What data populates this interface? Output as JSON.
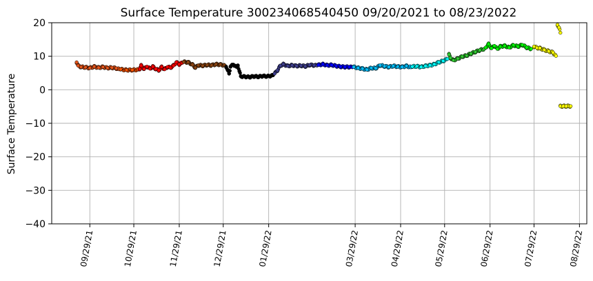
{
  "chart_data": {
    "type": "scatter",
    "title": "Surface Temperature 300234068540450  09/20/2021 to 08/23/2022",
    "xlabel": "",
    "ylabel": "Surface Temperature",
    "xlim": [
      "2021-09-03",
      "2022-09-03"
    ],
    "ylim": [
      -40,
      20
    ],
    "grid": true,
    "yticks": [
      -40,
      -30,
      -20,
      -10,
      0,
      10,
      20
    ],
    "yticklabels": [
      "−40",
      "−30",
      "−20",
      "−10",
      "0",
      "10",
      "20"
    ],
    "xticks": [
      "2021-09-29",
      "2021-10-29",
      "2021-11-29",
      "2021-12-29",
      "2022-01-29",
      "2022-03-29",
      "2022-04-29",
      "2022-05-29",
      "2022-06-29",
      "2022-07-29",
      "2022-08-29"
    ],
    "xticklabels": [
      "09/29/21",
      "10/29/21",
      "11/29/21",
      "12/29/21",
      "01/29/22",
      "03/29/22",
      "04/29/22",
      "05/29/22",
      "06/29/22",
      "07/29/22",
      "08/29/22"
    ],
    "series": [
      {
        "color": "#e8561a",
        "points": [
          [
            "2021-09-20",
            8.2
          ],
          [
            "2021-09-21",
            7.2
          ],
          [
            "2021-09-23",
            6.8
          ],
          [
            "2021-09-26",
            6.7
          ],
          [
            "2021-09-29",
            6.5
          ],
          [
            "2021-10-02",
            6.9
          ],
          [
            "2021-10-05",
            6.6
          ],
          [
            "2021-10-08",
            6.8
          ],
          [
            "2021-10-11",
            6.5
          ],
          [
            "2021-10-14",
            6.6
          ],
          [
            "2021-10-17",
            6.4
          ],
          [
            "2021-10-19",
            6.1
          ]
        ]
      },
      {
        "color": "#ff5500",
        "points": [
          [
            "2021-10-20",
            6.1
          ],
          [
            "2021-10-24",
            5.9
          ],
          [
            "2021-10-28",
            5.9
          ],
          [
            "2021-11-01",
            6.0
          ]
        ]
      },
      {
        "color": "#ff0000",
        "points": [
          [
            "2021-11-02",
            6.2
          ],
          [
            "2021-11-03",
            7.2
          ],
          [
            "2021-11-05",
            6.2
          ],
          [
            "2021-11-07",
            6.9
          ],
          [
            "2021-11-09",
            6.3
          ],
          [
            "2021-11-11",
            6.9
          ],
          [
            "2021-11-13",
            6.2
          ],
          [
            "2021-11-15",
            5.8
          ],
          [
            "2021-11-17",
            6.8
          ],
          [
            "2021-11-19",
            6.1
          ],
          [
            "2021-11-21",
            6.8
          ],
          [
            "2021-11-23",
            6.6
          ],
          [
            "2021-11-25",
            7.2
          ],
          [
            "2021-11-27",
            8.2
          ],
          [
            "2021-11-29",
            7.6
          ],
          [
            "2021-12-01",
            8.0
          ]
        ]
      },
      {
        "color": "#8b4513",
        "points": [
          [
            "2021-12-02",
            8.3
          ],
          [
            "2021-12-05",
            8.2
          ],
          [
            "2021-12-08",
            7.5
          ],
          [
            "2021-12-10",
            6.6
          ],
          [
            "2021-12-12",
            7.3
          ],
          [
            "2021-12-15",
            7.2
          ],
          [
            "2021-12-18",
            7.4
          ],
          [
            "2021-12-21",
            7.3
          ],
          [
            "2021-12-24",
            7.6
          ],
          [
            "2021-12-27",
            7.5
          ],
          [
            "2021-12-30",
            7.3
          ]
        ]
      },
      {
        "color": "#000000",
        "points": [
          [
            "2021-12-31",
            6.9
          ],
          [
            "2022-01-01",
            5.8
          ],
          [
            "2022-01-02",
            4.8
          ],
          [
            "2022-01-03",
            7.0
          ],
          [
            "2022-01-05",
            7.5
          ],
          [
            "2022-01-07",
            6.8
          ],
          [
            "2022-01-08",
            7.3
          ],
          [
            "2022-01-09",
            5.5
          ],
          [
            "2022-01-10",
            4.0
          ],
          [
            "2022-01-13",
            3.9
          ],
          [
            "2022-01-16",
            3.8
          ],
          [
            "2022-01-19",
            4.0
          ],
          [
            "2022-01-22",
            3.9
          ],
          [
            "2022-01-25",
            4.1
          ],
          [
            "2022-01-28",
            4.0
          ],
          [
            "2022-01-31",
            4.2
          ],
          [
            "2022-02-01",
            4.3
          ]
        ]
      },
      {
        "color": "#3f3f8f",
        "points": [
          [
            "2022-02-02",
            4.8
          ],
          [
            "2022-02-04",
            5.8
          ],
          [
            "2022-02-06",
            7.2
          ],
          [
            "2022-02-08",
            7.6
          ],
          [
            "2022-02-11",
            7.1
          ],
          [
            "2022-02-14",
            7.3
          ],
          [
            "2022-02-17",
            7.1
          ],
          [
            "2022-02-20",
            7.2
          ],
          [
            "2022-02-23",
            7.0
          ],
          [
            "2022-02-26",
            7.4
          ],
          [
            "2022-03-01",
            7.3
          ],
          [
            "2022-03-03",
            7.2
          ]
        ]
      },
      {
        "color": "#0000ff",
        "points": [
          [
            "2022-03-04",
            7.4
          ],
          [
            "2022-03-07",
            7.6
          ],
          [
            "2022-03-10",
            7.3
          ],
          [
            "2022-03-13",
            7.4
          ],
          [
            "2022-03-16",
            7.1
          ],
          [
            "2022-03-19",
            6.9
          ],
          [
            "2022-03-22",
            6.8
          ],
          [
            "2022-03-25",
            6.8
          ],
          [
            "2022-03-27",
            6.7
          ]
        ]
      },
      {
        "color": "#00bfff",
        "points": [
          [
            "2022-03-28",
            6.8
          ],
          [
            "2022-03-31",
            6.5
          ],
          [
            "2022-04-03",
            6.3
          ],
          [
            "2022-04-06",
            6.0
          ],
          [
            "2022-04-09",
            6.5
          ],
          [
            "2022-04-12",
            6.4
          ],
          [
            "2022-04-15",
            7.3
          ],
          [
            "2022-04-18",
            7.0
          ],
          [
            "2022-04-21",
            6.8
          ],
          [
            "2022-04-24",
            7.1
          ],
          [
            "2022-04-27",
            6.9
          ],
          [
            "2022-04-30",
            6.8
          ],
          [
            "2022-05-03",
            7.1
          ],
          [
            "2022-05-06",
            6.7
          ]
        ]
      },
      {
        "color": "#00ffff",
        "points": [
          [
            "2022-05-07",
            6.9
          ],
          [
            "2022-05-10",
            7.0
          ],
          [
            "2022-05-13",
            6.8
          ],
          [
            "2022-05-16",
            7.1
          ],
          [
            "2022-05-19",
            7.3
          ],
          [
            "2022-05-22",
            7.6
          ],
          [
            "2022-05-25",
            8.2
          ],
          [
            "2022-05-28",
            8.6
          ],
          [
            "2022-05-31",
            9.2
          ]
        ]
      },
      {
        "color": "#32cd32",
        "points": [
          [
            "2022-06-01",
            10.5
          ],
          [
            "2022-06-02",
            9.5
          ],
          [
            "2022-06-04",
            8.8
          ],
          [
            "2022-06-07",
            9.3
          ],
          [
            "2022-06-10",
            9.9
          ],
          [
            "2022-06-13",
            10.2
          ],
          [
            "2022-06-16",
            10.8
          ],
          [
            "2022-06-19",
            11.3
          ],
          [
            "2022-06-22",
            11.8
          ],
          [
            "2022-06-25",
            12.2
          ]
        ]
      },
      {
        "color": "#00ff00",
        "points": [
          [
            "2022-06-26",
            12.6
          ],
          [
            "2022-06-28",
            13.6
          ],
          [
            "2022-06-30",
            12.4
          ],
          [
            "2022-07-02",
            13.1
          ],
          [
            "2022-07-04",
            12.2
          ],
          [
            "2022-07-06",
            12.9
          ],
          [
            "2022-07-09",
            13.1
          ],
          [
            "2022-07-12",
            12.6
          ],
          [
            "2022-07-15",
            13.3
          ],
          [
            "2022-07-18",
            12.9
          ],
          [
            "2022-07-21",
            13.4
          ],
          [
            "2022-07-24",
            12.6
          ],
          [
            "2022-07-27",
            12.2
          ]
        ]
      },
      {
        "color": "#ffff00",
        "points": [
          [
            "2022-07-29",
            12.9
          ],
          [
            "2022-07-31",
            12.5
          ],
          [
            "2022-08-02",
            12.4
          ],
          [
            "2022-08-05",
            11.9
          ],
          [
            "2022-08-08",
            11.5
          ],
          [
            "2022-08-11",
            11.1
          ],
          [
            "2022-08-13",
            10.1
          ],
          [
            "2022-08-14",
            19.4
          ],
          [
            "2022-08-15",
            18.6
          ],
          [
            "2022-08-16",
            17.0
          ],
          [
            "2022-08-16",
            -4.9
          ],
          [
            "2022-08-18",
            -4.9
          ],
          [
            "2022-08-20",
            -4.9
          ],
          [
            "2022-08-22",
            -4.9
          ],
          [
            "2022-08-23",
            -4.9
          ]
        ]
      }
    ]
  }
}
